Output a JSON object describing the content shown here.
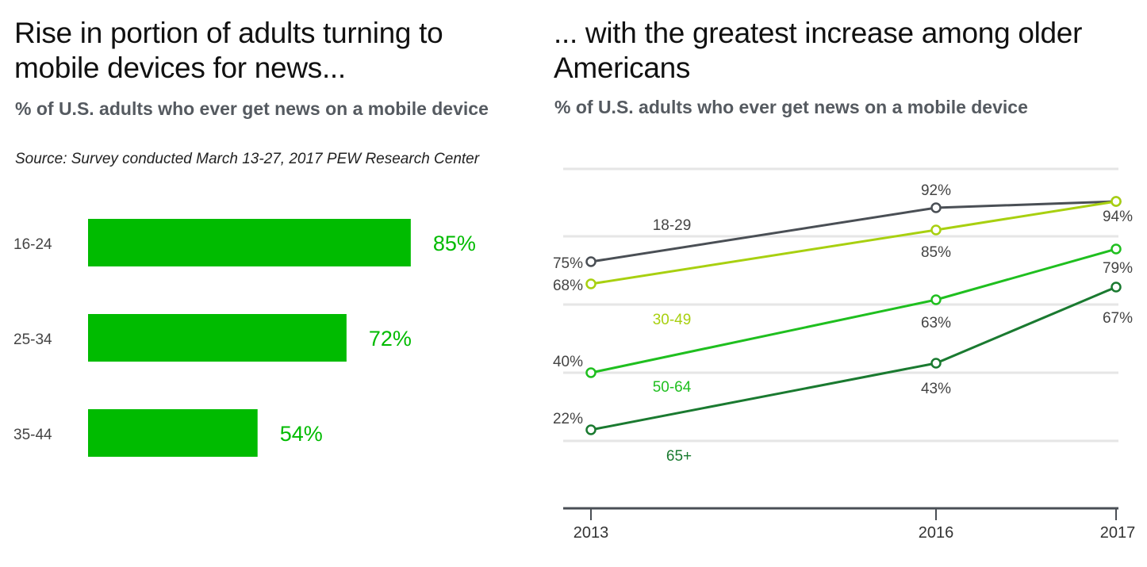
{
  "chart_data": [
    {
      "type": "bar",
      "orientation": "horizontal",
      "title": "Rise in portion of adults turning to mobile devices for news...",
      "subtitle": "% of U.S. adults who ever get news on a mobile device",
      "source": "Source: Survey conducted March 13-27, 2017 PEW Research Center",
      "categories": [
        "16-24",
        "25-34",
        "35-44"
      ],
      "values": [
        85,
        72,
        54
      ],
      "labels": [
        "85%",
        "72%",
        "54%"
      ],
      "color": "#00bb00",
      "grid": false
    },
    {
      "type": "line",
      "title": "... with the greatest increase among older Americans",
      "subtitle": "% of U.S. adults who ever get news on a mobile device",
      "x": [
        "2013",
        "2016",
        "2017"
      ],
      "grid": true,
      "series": [
        {
          "name": "18-29",
          "values": [
            75,
            92,
            94
          ],
          "labels": [
            "75%",
            "92%",
            "94%"
          ],
          "color": "#4a4f55"
        },
        {
          "name": "30-49",
          "values": [
            68,
            85,
            94
          ],
          "labels": [
            "68%",
            "85%",
            ""
          ],
          "color": "#a8d010"
        },
        {
          "name": "50-64",
          "values": [
            40,
            63,
            79
          ],
          "labels": [
            "40%",
            "63%",
            "79%"
          ],
          "color": "#1fbf1f"
        },
        {
          "name": "65+",
          "values": [
            22,
            43,
            67
          ],
          "labels": [
            "22%",
            "43%",
            "67%"
          ],
          "color": "#1a7a30"
        }
      ]
    }
  ]
}
